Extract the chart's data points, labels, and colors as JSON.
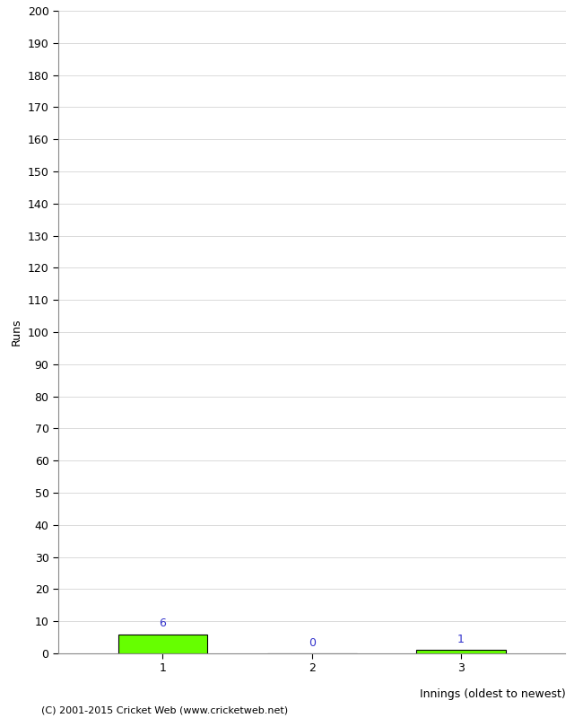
{
  "innings": [
    1,
    2,
    3
  ],
  "runs": [
    6,
    0,
    1
  ],
  "bar_color": "#66ff00",
  "bar_edge_color": "#000000",
  "label_color": "#3333cc",
  "xlabel": "Innings (oldest to newest)",
  "ylabel": "Runs",
  "ylim": [
    0,
    200
  ],
  "yticks": [
    0,
    10,
    20,
    30,
    40,
    50,
    60,
    70,
    80,
    90,
    100,
    110,
    120,
    130,
    140,
    150,
    160,
    170,
    180,
    190,
    200
  ],
  "footer": "(C) 2001-2015 Cricket Web (www.cricketweb.net)",
  "background_color": "#ffffff",
  "grid_color": "#cccccc",
  "bar_width": 0.6
}
